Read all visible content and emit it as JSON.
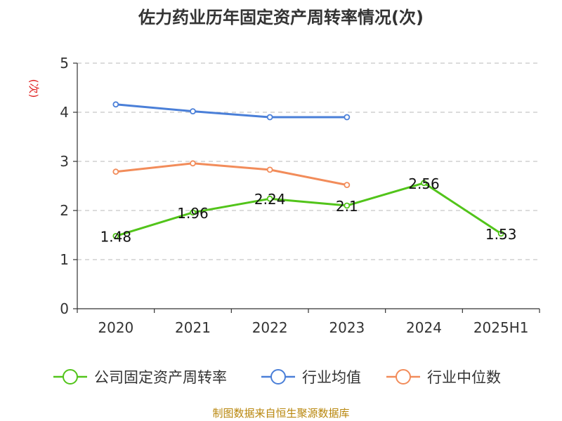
{
  "chart_data": {
    "type": "line",
    "title": "佐力药业历年固定资产周转率情况(次)",
    "ylabel": "(次)",
    "categories": [
      "2020",
      "2021",
      "2022",
      "2023",
      "2024",
      "2025H1"
    ],
    "ylim": [
      0,
      5
    ],
    "yticks": [
      0,
      1,
      2,
      3,
      4,
      5
    ],
    "grid": true,
    "legend_position": "bottom",
    "series": [
      {
        "name": "公司固定资产周转率",
        "color": "#52c41a",
        "values": [
          1.48,
          1.96,
          2.24,
          2.1,
          2.56,
          1.53
        ],
        "labels": [
          "1.48",
          "1.96",
          "2.24",
          "2.1",
          "2.56",
          "1.53"
        ]
      },
      {
        "name": "行业均值",
        "color": "#4a7fd8",
        "values": [
          4.16,
          4.02,
          3.9,
          3.9,
          null,
          null
        ]
      },
      {
        "name": "行业中位数",
        "color": "#f28c5a",
        "values": [
          2.79,
          2.96,
          2.83,
          2.52,
          null,
          null
        ]
      }
    ],
    "source": "制图数据来自恒生聚源数据库"
  }
}
